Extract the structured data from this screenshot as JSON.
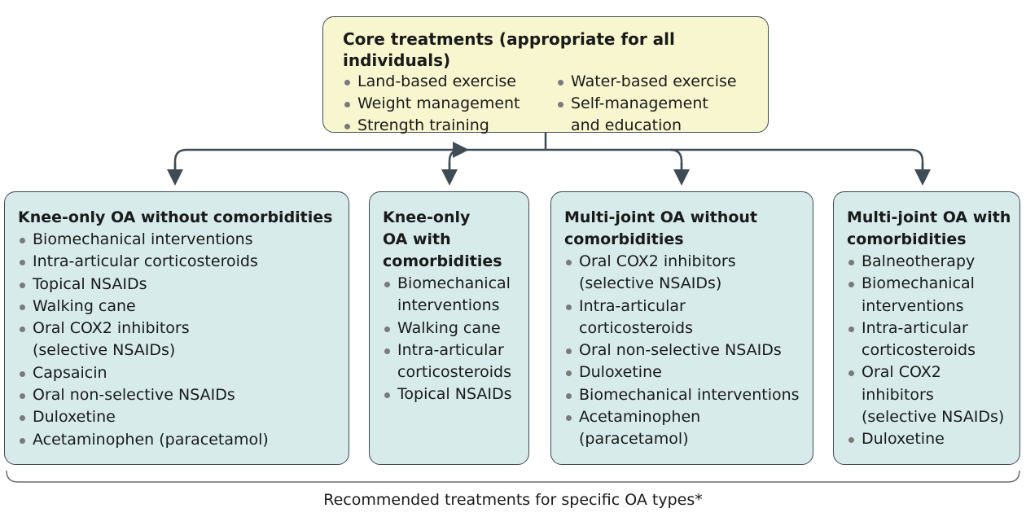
{
  "core": {
    "title": "Core treatments (appropriate for all individuals)",
    "col1": [
      "Land-based exercise",
      "Weight management",
      "Strength training"
    ],
    "col2": [
      "Water-based exercise",
      "Self-management",
      "and education"
    ]
  },
  "boxes": [
    {
      "title_lines": [
        "Knee-only OA without comorbidities"
      ],
      "items": [
        "Biomechanical interventions",
        "Intra-articular corticosteroids",
        "Topical NSAIDs",
        "Walking cane",
        "Oral COX2 inhibitors",
        "(selective NSAIDs)",
        "Capsaicin",
        "Oral non-selective NSAIDs",
        "Duloxetine",
        "Acetaminophen (paracetamol)"
      ]
    },
    {
      "title_lines": [
        "Knee-only",
        "OA with",
        "comorbidities"
      ],
      "items": [
        "Biomechanical",
        "interventions",
        "Walking cane",
        "Intra-articular",
        "corticosteroids",
        "Topical NSAIDs"
      ]
    },
    {
      "title_lines": [
        "Multi-joint OA without",
        "comorbidities"
      ],
      "items": [
        "Oral COX2 inhibitors",
        "(selective NSAIDs)",
        "Intra-articular",
        "corticosteroids",
        "Oral non-selective NSAIDs",
        "Duloxetine",
        "Biomechanical interventions",
        "Acetaminophen",
        "(paracetamol)"
      ]
    },
    {
      "title_lines": [
        "Multi-joint OA with",
        "comorbidities"
      ],
      "items": [
        "Balneotherapy",
        "Biomechanical",
        "interventions",
        "Intra-articular",
        "corticosteroids",
        "Oral COX2",
        "inhibitors",
        "(selective NSAIDs)",
        "Duloxetine"
      ]
    }
  ],
  "footer": "Recommended treatments for specific OA types*"
}
